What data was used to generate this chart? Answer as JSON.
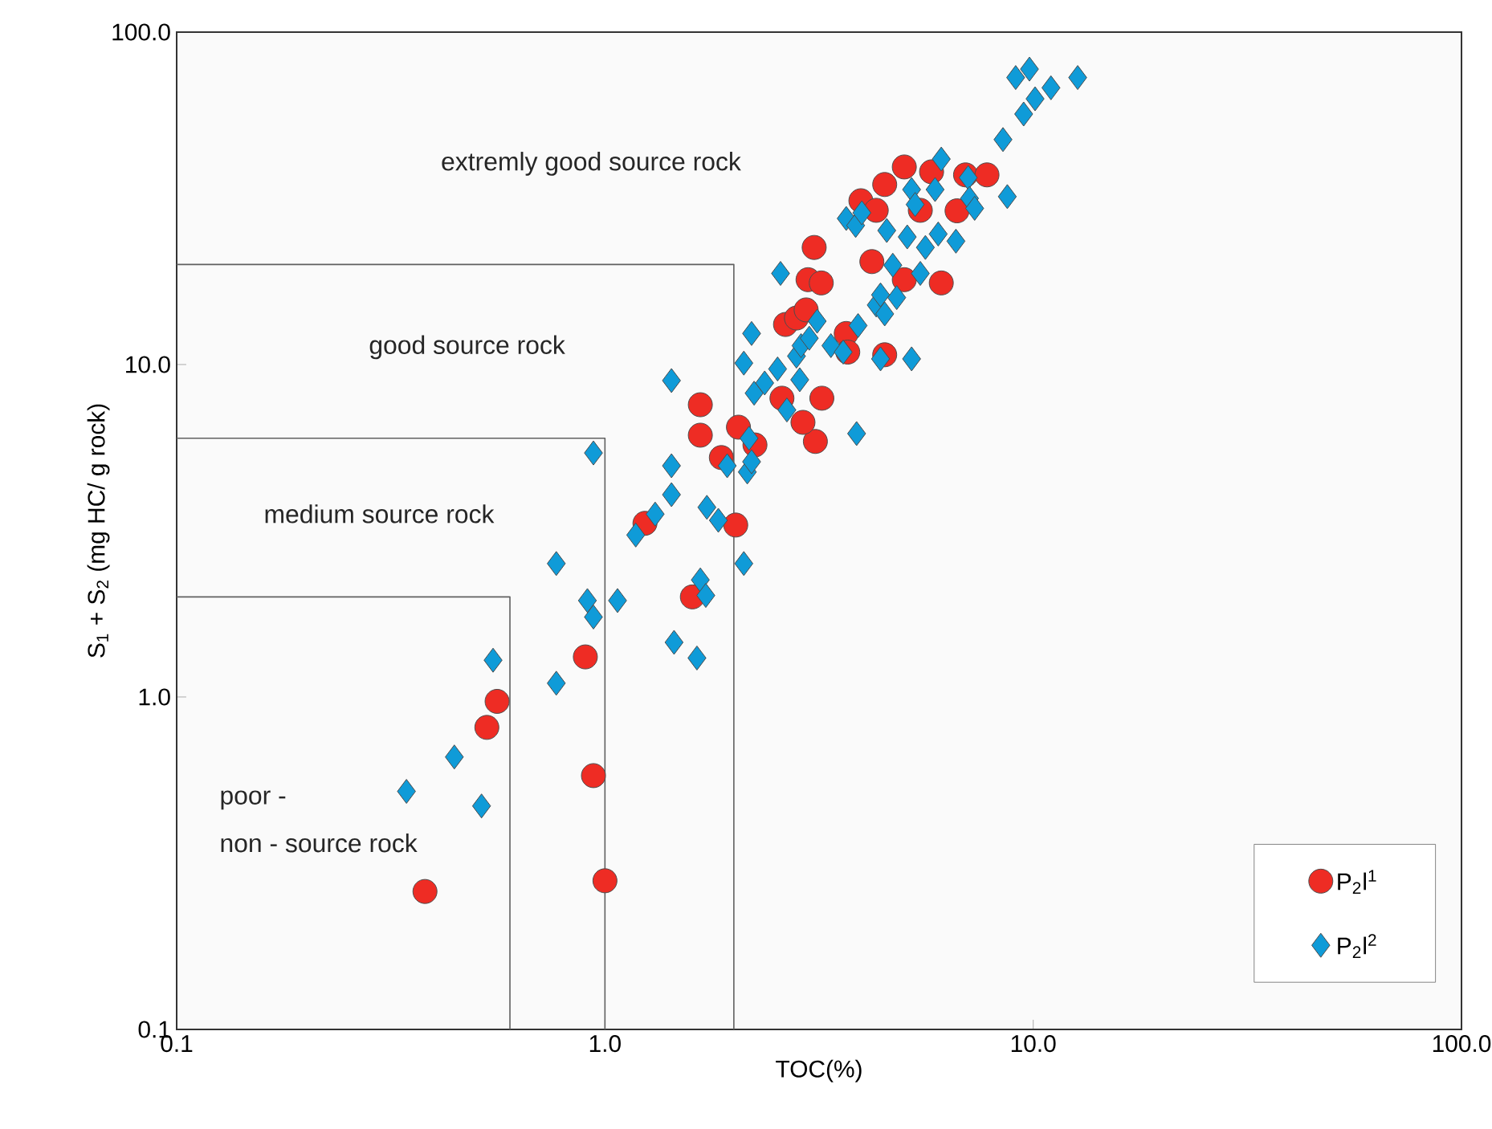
{
  "chart_data": {
    "type": "scatter",
    "xlabel": "TOC(%)",
    "ylabel": "S$_{1}$ + S$_{2}$ (mg HC/ g rock)",
    "log": "xy",
    "xlim": [
      0.1,
      100
    ],
    "ylim": [
      0.1,
      100
    ],
    "xticks": [
      0.1,
      {
        "value": 1,
        "label": "1.0"
      },
      {
        "value": 10,
        "label": "10.0"
      },
      {
        "value": 100,
        "label": "100.0"
      }
    ],
    "yticks": [
      0.1,
      {
        "value": 1,
        "label": "1.0"
      },
      {
        "value": 10,
        "label": "10.0"
      },
      {
        "value": 100,
        "label": "100.0"
      }
    ],
    "grid": false,
    "legend": "bottom right",
    "series": [
      {
        "name": "P$_{2}$l$^{1}$",
        "color": "#ee2c24",
        "marker": "circle",
        "x": [
          0.38,
          1.0,
          0.94,
          0.9,
          0.56,
          0.53,
          1.24,
          2.02,
          1.6,
          1.67,
          1.67,
          1.87,
          2.05,
          2.24,
          2.59,
          3.21,
          3.66,
          2.64,
          2.8,
          2.95,
          3.08,
          2.98,
          3.2,
          4.2,
          5.0,
          6.1,
          3.69,
          4.5,
          3.1,
          2.9,
          3.96,
          4.3,
          4.5,
          5.0,
          5.45,
          5.79,
          6.64,
          6.95,
          7.8
        ],
        "values": [
          0.26,
          0.28,
          0.58,
          1.32,
          0.97,
          0.81,
          3.33,
          3.29,
          2.0,
          7.57,
          6.13,
          5.25,
          6.48,
          5.73,
          7.92,
          7.92,
          12.4,
          13.2,
          13.8,
          14.6,
          22.5,
          18.0,
          17.6,
          20.4,
          18.0,
          17.6,
          10.9,
          10.7,
          5.87,
          6.7,
          31.1,
          29.1,
          34.8,
          39.3,
          29.1,
          38,
          29,
          37.2,
          37.2
        ]
      },
      {
        "name": "P$_{2}$l$^{2}$",
        "color": "#0f9bd8",
        "marker": "diamond",
        "x": [
          0.344,
          0.445,
          0.515,
          0.548,
          0.77,
          0.77,
          0.91,
          0.94,
          0.94,
          1.07,
          1.18,
          1.31,
          1.43,
          1.43,
          1.43,
          1.45,
          1.64,
          1.67,
          1.72,
          1.73,
          1.84,
          1.93,
          2.11,
          2.15,
          2.2,
          2.17,
          2.11,
          2.23,
          2.36,
          2.2,
          2.53,
          2.66,
          2.85,
          2.57,
          2.8,
          2.87,
          3.13,
          3.0,
          3.37,
          3.6,
          3.9,
          3.66,
          3.85,
          3.98,
          3.87,
          4.3,
          4.4,
          4.5,
          4.8,
          4.7,
          4.4,
          4.55,
          5.08,
          5.2,
          5.3,
          5.45,
          5.2,
          5.6,
          6.0,
          6.1,
          5.9,
          6.6,
          7.05,
          7.1,
          7.3,
          8.7,
          8.5,
          9.1,
          9.8,
          9.5,
          10.1,
          11.0,
          12.7
        ],
        "values": [
          0.52,
          0.66,
          0.47,
          1.29,
          1.1,
          2.52,
          1.95,
          1.74,
          5.42,
          1.95,
          3.07,
          3.55,
          4.06,
          4.96,
          8.95,
          1.46,
          1.31,
          2.25,
          2.02,
          3.72,
          3.4,
          4.96,
          2.52,
          4.75,
          5.1,
          6.0,
          10.1,
          8.2,
          8.8,
          12.4,
          9.7,
          7.3,
          9.0,
          18.8,
          10.6,
          11.4,
          13.5,
          12.0,
          11.4,
          10.9,
          13.1,
          27.5,
          26.2,
          28.6,
          6.2,
          15.1,
          16.2,
          14.2,
          15.9,
          19.9,
          10.4,
          25.3,
          24.2,
          33.6,
          30.3,
          18.8,
          10.4,
          22.5,
          24.7,
          41.5,
          33.6,
          23.5,
          36.5,
          31.6,
          29.5,
          32,
          47.5,
          73,
          77.4,
          56.7,
          63,
          68,
          73
        ]
      },
      {
        "type": "line",
        "color": "#606060",
        "marker": "none",
        "line_style": "solid",
        "x": [
          0.1,
          0.6,
          0.6
        ],
        "values": [
          2,
          2,
          0.1
        ]
      },
      {
        "type": "line",
        "color": "#606060",
        "marker": "none",
        "line_style": "solid",
        "x": [
          0.1,
          1.0,
          1.0
        ],
        "values": [
          6,
          6,
          0.1
        ]
      },
      {
        "type": "line",
        "color": "#606060",
        "marker": "none",
        "line_style": "solid",
        "x": [
          0.1,
          2.0,
          2.0
        ],
        "values": [
          20,
          20,
          0.1
        ]
      }
    ],
    "annotations": [
      "extremly good source rock",
      "good source rock",
      "medium source rock",
      "poor -",
      "non - source rock"
    ]
  }
}
